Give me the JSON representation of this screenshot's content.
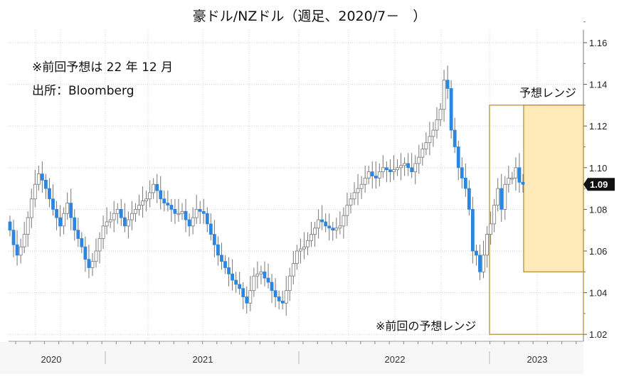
{
  "chart_data": {
    "type": "candlestick",
    "title": "豪ドル/NZドル（週足、2020/7－　）",
    "annotations": [
      "※前回予想は 22 年 12 月",
      "出所：Bloomberg"
    ],
    "ylim": [
      1.015,
      1.17
    ],
    "yticks": [
      1.02,
      1.04,
      1.06,
      1.08,
      1.1,
      1.12,
      1.14,
      1.16
    ],
    "ytick_labels": [
      "1.02",
      "1.04",
      "1.06",
      "1.08",
      "1.10",
      "1.12",
      "1.14",
      "1.16"
    ],
    "xtick_labels": [
      "2020",
      "2021",
      "2022",
      "2023"
    ],
    "last_price_label": "1.09",
    "last_price": 1.092,
    "forecast_range": {
      "label": "予想レンジ",
      "low": 1.05,
      "high": 1.13
    },
    "previous_forecast_range": {
      "label": "※前回の予想レンジ",
      "low": 1.02,
      "high": 1.13
    },
    "colors": {
      "down": "#2b86e0",
      "up": "#ffffff",
      "range_fill": "#fdeab8",
      "range_border": "#b08a2a"
    },
    "open_first": 1.074,
    "closes": [
      1.07,
      1.063,
      1.058,
      1.062,
      1.068,
      1.076,
      1.085,
      1.092,
      1.097,
      1.094,
      1.09,
      1.085,
      1.08,
      1.076,
      1.072,
      1.078,
      1.083,
      1.076,
      1.07,
      1.066,
      1.062,
      1.056,
      1.052,
      1.055,
      1.06,
      1.066,
      1.072,
      1.074,
      1.075,
      1.078,
      1.08,
      1.076,
      1.072,
      1.075,
      1.078,
      1.08,
      1.082,
      1.084,
      1.085,
      1.088,
      1.092,
      1.089,
      1.085,
      1.083,
      1.082,
      1.08,
      1.078,
      1.078,
      1.079,
      1.075,
      1.072,
      1.076,
      1.08,
      1.079,
      1.078,
      1.073,
      1.068,
      1.063,
      1.058,
      1.055,
      1.052,
      1.049,
      1.046,
      1.044,
      1.042,
      1.038,
      1.035,
      1.041,
      1.048,
      1.049,
      1.05,
      1.047,
      1.045,
      1.041,
      1.038,
      1.036,
      1.035,
      1.041,
      1.048,
      1.054,
      1.06,
      1.061,
      1.062,
      1.065,
      1.068,
      1.071,
      1.075,
      1.074,
      1.072,
      1.071,
      1.07,
      1.071,
      1.072,
      1.077,
      1.082,
      1.085,
      1.088,
      1.09,
      1.092,
      1.095,
      1.098,
      1.096,
      1.095,
      1.098,
      1.1,
      1.099,
      1.098,
      1.099,
      1.1,
      1.101,
      1.102,
      1.1,
      1.098,
      1.102,
      1.105,
      1.109,
      1.112,
      1.115,
      1.118,
      1.123,
      1.128,
      1.142,
      1.138,
      1.118,
      1.11,
      1.1,
      1.095,
      1.09,
      1.08,
      1.06,
      1.058,
      1.05,
      1.058,
      1.068,
      1.073,
      1.082,
      1.09,
      1.08,
      1.092,
      1.095,
      1.095,
      1.1,
      1.093,
      1.092
    ]
  }
}
